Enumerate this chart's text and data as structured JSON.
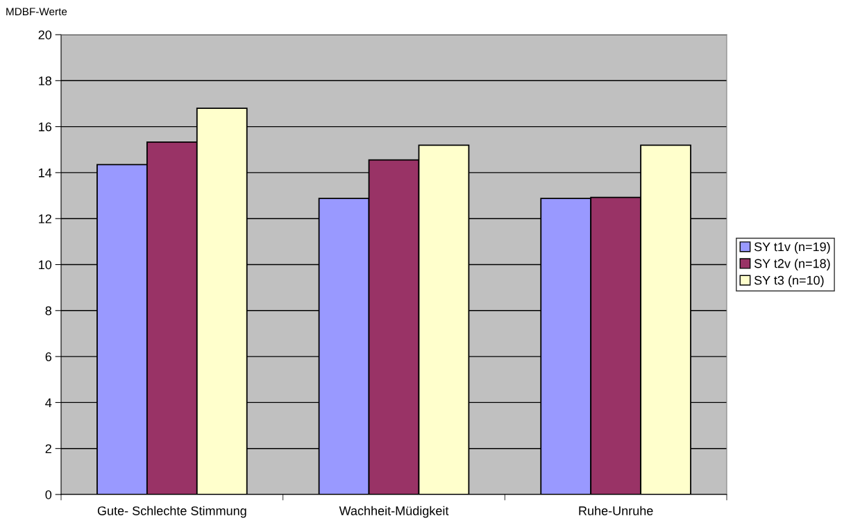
{
  "chart_data": {
    "type": "bar",
    "ylabel": "MDBF-Werte",
    "categories": [
      "Gute- Schlechte Stimmung",
      "Wachheit-Müdigkeit",
      "Ruhe-Unruhe"
    ],
    "series": [
      {
        "name": "SY t1v (n=19)",
        "color": "#9999ff",
        "values": [
          14.35,
          12.88,
          12.88
        ]
      },
      {
        "name": "SY t2v (n=18)",
        "color": "#993366",
        "values": [
          15.33,
          14.55,
          12.92
        ]
      },
      {
        "name": "SY t3 (n=10)",
        "color": "#ffffcc",
        "values": [
          16.8,
          15.19,
          15.19
        ]
      }
    ],
    "ylim": [
      0,
      20
    ],
    "yticks": [
      0,
      2,
      4,
      6,
      8,
      10,
      12,
      14,
      16,
      18,
      20
    ],
    "grid": "y",
    "legend": "right"
  }
}
